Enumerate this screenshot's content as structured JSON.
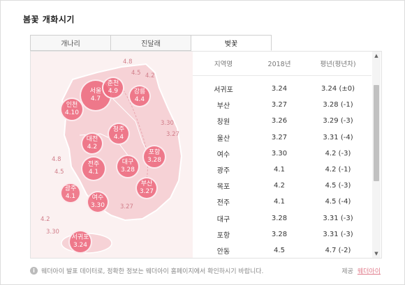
{
  "title": "봄꽃 개화시기",
  "tabs": [
    {
      "label": "개나리",
      "active": false
    },
    {
      "label": "진달래",
      "active": false
    },
    {
      "label": "벚꽃",
      "active": true
    }
  ],
  "table": {
    "headers": [
      "지역명",
      "2018년",
      "평년(평년차)"
    ],
    "rows": [
      [
        "서귀포",
        "3.24",
        "3.24 (±0)"
      ],
      [
        "부산",
        "3.27",
        "3.28 (-1)"
      ],
      [
        "창원",
        "3.26",
        "3.29 (-3)"
      ],
      [
        "울산",
        "3.27",
        "3.31 (-4)"
      ],
      [
        "여수",
        "3.30",
        "4.2 (-3)"
      ],
      [
        "광주",
        "4.1",
        "4.2 (-1)"
      ],
      [
        "목포",
        "4.2",
        "4.5 (-3)"
      ],
      [
        "전주",
        "4.1",
        "4.5 (-4)"
      ],
      [
        "대구",
        "3.28",
        "3.31 (-3)"
      ],
      [
        "포항",
        "3.28",
        "3.31 (-3)"
      ],
      [
        "안동",
        "4.5",
        "4.7 (-2)"
      ]
    ]
  },
  "map": {
    "bubbles": [
      {
        "name": "서울",
        "date": "4.7"
      },
      {
        "name": "춘천",
        "date": "4.9"
      },
      {
        "name": "강릉",
        "date": "4.4"
      },
      {
        "name": "인천",
        "date": "4.10"
      },
      {
        "name": "청주",
        "date": "4.4"
      },
      {
        "name": "대전",
        "date": "4.2"
      },
      {
        "name": "전주",
        "date": "4.1"
      },
      {
        "name": "대구",
        "date": "3.28"
      },
      {
        "name": "포항",
        "date": "3.28"
      },
      {
        "name": "광주",
        "date": "4.1"
      },
      {
        "name": "여수",
        "date": "3.30"
      },
      {
        "name": "부산",
        "date": "3.27"
      },
      {
        "name": "서귀포",
        "date": "3.24"
      }
    ],
    "labels": [
      "4.8",
      "4.5",
      "4.2",
      "3.30",
      "3.27",
      "4.8",
      "4.5",
      "3.27",
      "4.2",
      "3.30"
    ]
  },
  "footer": {
    "note": "웨더아이 발표 데이터로, 정확한 정보는 웨더아이 홈페이지에서 확인하시기 바랍니다.",
    "source_label": "제공",
    "source_link": "웨더아이"
  },
  "colors": {
    "bubble": "#ec697d",
    "map_bg": "#fbf1f1",
    "link": "#e07a8a"
  }
}
